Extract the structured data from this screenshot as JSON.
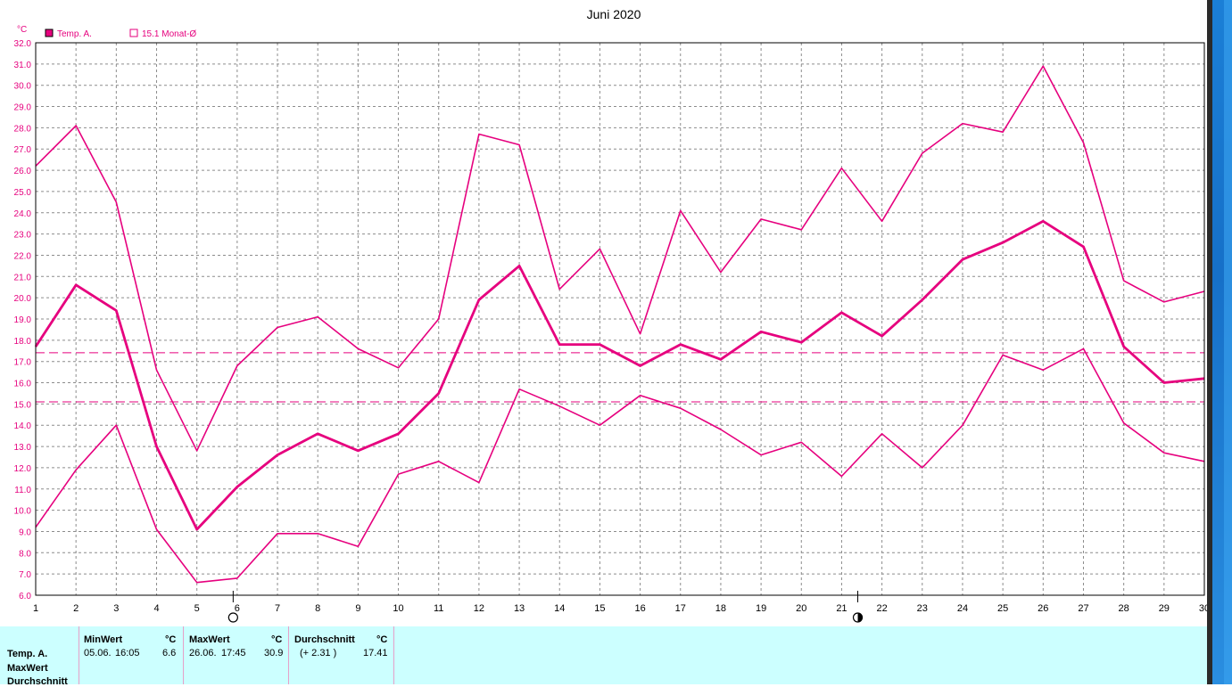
{
  "chart_data": {
    "type": "line",
    "title": "Juni 2020",
    "ylabel": "°C",
    "ylim": [
      6.0,
      32.0
    ],
    "ytick_step": 1.0,
    "x": [
      1,
      2,
      3,
      4,
      5,
      6,
      7,
      8,
      9,
      10,
      11,
      12,
      13,
      14,
      15,
      16,
      17,
      18,
      19,
      20,
      21,
      22,
      23,
      24,
      25,
      26,
      27,
      28,
      29,
      30
    ],
    "legend": [
      {
        "label": "Temp. A.",
        "marker": "filled-square"
      },
      {
        "label": "15.1 Monat-Ø",
        "marker": "open-square"
      }
    ],
    "series": [
      {
        "name": "max",
        "values": [
          26.2,
          28.1,
          24.5,
          16.6,
          12.8,
          16.8,
          18.6,
          19.1,
          17.6,
          16.7,
          19.0,
          27.7,
          27.2,
          20.4,
          22.3,
          18.3,
          24.1,
          21.2,
          23.7,
          23.2,
          26.1,
          23.6,
          26.8,
          28.2,
          27.8,
          30.9,
          27.3,
          20.8,
          19.8,
          20.3
        ]
      },
      {
        "name": "avg",
        "values": [
          17.7,
          20.6,
          19.4,
          13.0,
          9.1,
          11.1,
          12.6,
          13.6,
          12.8,
          13.6,
          15.5,
          19.9,
          21.5,
          17.8,
          17.8,
          16.8,
          17.8,
          17.1,
          18.4,
          17.9,
          19.3,
          18.2,
          19.9,
          21.8,
          22.6,
          23.6,
          22.4,
          17.7,
          16.0,
          16.2
        ]
      },
      {
        "name": "min",
        "values": [
          9.2,
          11.9,
          14.0,
          9.1,
          6.6,
          6.8,
          8.9,
          8.9,
          8.3,
          11.7,
          12.3,
          11.3,
          15.7,
          14.9,
          14.0,
          15.4,
          14.8,
          13.8,
          12.6,
          13.2,
          11.6,
          13.6,
          12.0,
          14.0,
          17.3,
          16.6,
          17.6,
          14.1,
          12.7,
          12.3
        ]
      }
    ],
    "reference_lines": [
      {
        "label": "15.1 Monat-Ø",
        "value": 15.1
      },
      {
        "label": "",
        "value": 17.41
      }
    ],
    "moon_markers": [
      {
        "x": 5.9,
        "symbol": "full-moon"
      },
      {
        "x": 21.4,
        "symbol": "new-moon"
      }
    ],
    "grid": true,
    "line_color": "#e6007e",
    "axis_text_color": "#e6007e"
  },
  "stats": {
    "row_labels": [
      "Temp. A.",
      "MaxWert",
      "Durchschnitt"
    ],
    "min": {
      "header": "MinWert",
      "unit": "°C",
      "date": "05.06.",
      "time": "16:05",
      "value": "6.6"
    },
    "max": {
      "header": "MaxWert",
      "unit": "°C",
      "date": "26.06.",
      "time": "17:45",
      "value": "30.9"
    },
    "avg": {
      "header": "Durchschnitt",
      "unit": "°C",
      "delta": "(+ 2.31 )",
      "value": "17.41"
    }
  }
}
